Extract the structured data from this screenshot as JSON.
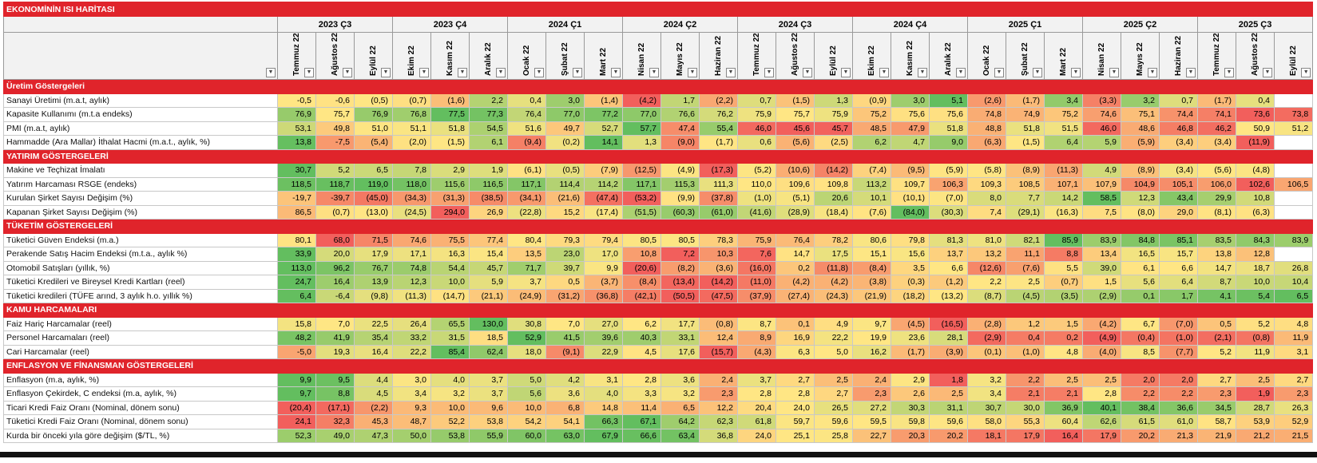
{
  "title": "EKONOMİNİN ISI HARİTASI",
  "quarters": [
    {
      "label": "2023 Ç3",
      "months": [
        "Temmuz 22",
        "Ağustos 22",
        "Eylül 22"
      ]
    },
    {
      "label": "2023 Ç4",
      "months": [
        "Ekim 22",
        "Kasım 22",
        "Aralık 22"
      ]
    },
    {
      "label": "2024 Ç1",
      "months": [
        "Ocak 22",
        "Şubat 22",
        "Mart 22"
      ]
    },
    {
      "label": "2024 Ç2",
      "months": [
        "Nisan 22",
        "Mayıs 22",
        "Haziran 22"
      ]
    },
    {
      "label": "2024 Ç3",
      "months": [
        "Temmuz 22",
        "Ağustos 22",
        "Eylül 22"
      ]
    },
    {
      "label": "2024 Ç4",
      "months": [
        "Ekim 22",
        "Kasım 22",
        "Aralık 22"
      ]
    },
    {
      "label": "2025 Ç1",
      "months": [
        "Ocak 22",
        "Şubat 22",
        "Mart 22"
      ]
    },
    {
      "label": "2025 Ç2",
      "months": [
        "Nisan 22",
        "Mayıs 22",
        "Haziran 22"
      ]
    },
    {
      "label": "2025 Ç3",
      "months": [
        "Temmuz 22",
        "Ağustos 22",
        "Eylül 22"
      ]
    }
  ],
  "sections": [
    {
      "title": "Üretim Göstergeleri",
      "rows": [
        {
          "label": "Sanayi Üretimi (m.a.t, aylık)",
          "cells": [
            "-0,5",
            "-0,6",
            "(0,5)",
            "(0,7)",
            "(1,6)",
            "2,2",
            "0,4",
            "3,0",
            "(1,4)",
            "(4,2)",
            "1,7",
            "(2,2)",
            "0,7",
            "(1,5)",
            "1,3",
            "(0,9)",
            "3,0",
            "5,1",
            "(2,6)",
            "(1,7)",
            "3,4",
            "(3,3)",
            "3,2",
            "0,7",
            "(1,7)",
            "0,4",
            null
          ]
        },
        {
          "label": "Kapasite Kullanımı (m.t.a endeks)",
          "cells": [
            "76,9",
            "75,7",
            "76,9",
            "76,8",
            "77,5",
            "77,3",
            "76,4",
            "77,0",
            "77,2",
            "77,0",
            "76,6",
            "76,2",
            "75,9",
            "75,7",
            "75,9",
            "75,2",
            "75,6",
            "75,6",
            "74,8",
            "74,9",
            "75,2",
            "74,6",
            "75,1",
            "74,4",
            "74,1",
            "73,6",
            "73,8"
          ]
        },
        {
          "label": "PMI (m.a.t, aylık)",
          "cells": [
            "53,1",
            "49,8",
            "51,0",
            "51,1",
            "51,8",
            "54,5",
            "51,6",
            "49,7",
            "52,7",
            "57,7",
            "47,4",
            "55,4",
            "46,0",
            "45,6",
            "45,7",
            "48,5",
            "47,9",
            "51,8",
            "48,8",
            "51,8",
            "51,5",
            "46,0",
            "48,6",
            "46,8",
            "46,2",
            "50,9",
            "51,2"
          ]
        },
        {
          "label": "Hammadde (Ara Mallar) İthalat Hacmi (m.a.t., aylık, %)",
          "cells": [
            "13,8",
            "-7,5",
            "(5,4)",
            "(2,0)",
            "(1,5)",
            "6,1",
            "(9,4)",
            "(0,2)",
            "14,1",
            "1,3",
            "(9,0)",
            "(1,7)",
            "0,6",
            "(5,6)",
            "(2,5)",
            "6,2",
            "4,7",
            "9,0",
            "(6,3)",
            "(1,5)",
            "6,4",
            "5,9",
            "(5,9)",
            "(3,4)",
            "(3,4)",
            "(11,9)",
            null
          ]
        }
      ]
    },
    {
      "title": "YATIRIM GÖSTERGELERİ",
      "rows": [
        {
          "label": "Makine ve Teçhizat İmalatı",
          "cells": [
            "30,7",
            "5,2",
            "6,5",
            "7,8",
            "2,9",
            "1,9",
            "(6,1)",
            "(0,5)",
            "(7,9)",
            "(12,5)",
            "(4,9)",
            "(17,3)",
            "(5,2)",
            "(10,6)",
            "(14,2)",
            "(7,4)",
            "(9,5)",
            "(5,9)",
            "(5,8)",
            "(8,9)",
            "(11,3)",
            "4,9",
            "(8,9)",
            "(3,4)",
            "(5,6)",
            "(4,8)",
            null
          ]
        },
        {
          "label": "Yatırım Harcaması RSGE (endeks)",
          "cells": [
            "118,5",
            "118,7",
            "119,0",
            "118,0",
            "115,6",
            "116,5",
            "117,1",
            "114,4",
            "114,2",
            "117,1",
            "115,3",
            "111,3",
            "110,0",
            "109,6",
            "109,8",
            "113,2",
            "109,7",
            "106,3",
            "109,3",
            "108,5",
            "107,1",
            "107,9",
            "104,9",
            "105,1",
            "106,0",
            "102,6",
            "106,5"
          ]
        },
        {
          "label": "Kurulan Şirket Sayısı Değişim (%)",
          "cells": [
            "-19,7",
            "-39,7",
            "(45,0)",
            "(34,3)",
            "(31,3)",
            "(38,5)",
            "(34,1)",
            "(21,6)",
            "(47,4)",
            "(53,2)",
            "(9,9)",
            "(37,8)",
            "(1,0)",
            "(5,1)",
            "20,6",
            "10,1",
            "(10,1)",
            "(7,0)",
            "8,0",
            "7,7",
            "14,2",
            "58,5",
            "12,3",
            "43,4",
            "29,9",
            "10,8",
            null
          ]
        },
        {
          "label": "Kapanan Şirket Sayısı Değişim (%)",
          "cells": [
            "86,5",
            "(0,7)",
            "(13,0)",
            "(24,5)",
            "294,0",
            "26,9",
            "(22,8)",
            "15,2",
            "(17,4)",
            "(51,5)",
            "(60,3)",
            "(61,0)",
            "(41,6)",
            "(28,9)",
            "(18,4)",
            "(7,6)",
            "(84,0)",
            "(30,3)",
            "7,4",
            "(29,1)",
            "(16,3)",
            "7,5",
            "(8,0)",
            "29,0",
            "(8,1)",
            "(6,3)",
            null
          ]
        }
      ]
    },
    {
      "title": "TÜKETİM GÖSTERGELERİ",
      "rows": [
        {
          "label": "Tüketici Güven Endeksi (m.a.)",
          "cells": [
            "80,1",
            "68,0",
            "71,5",
            "74,6",
            "75,5",
            "77,4",
            "80,4",
            "79,3",
            "79,4",
            "80,5",
            "80,5",
            "78,3",
            "75,9",
            "76,4",
            "78,2",
            "80,6",
            "79,8",
            "81,3",
            "81,0",
            "82,1",
            "85,9",
            "83,9",
            "84,8",
            "85,1",
            "83,5",
            "84,3",
            "83,9"
          ]
        },
        {
          "label": "Perakende Satış Hacim Endeksi (m.t.a., aylık %)",
          "cells": [
            "33,9",
            "20,0",
            "17,9",
            "17,1",
            "16,3",
            "15,4",
            "13,5",
            "23,0",
            "17,0",
            "10,8",
            "7,2",
            "10,3",
            "7,6",
            "14,7",
            "17,5",
            "15,1",
            "15,6",
            "13,7",
            "13,2",
            "11,1",
            "8,8",
            "13,4",
            "16,5",
            "15,7",
            "13,8",
            "12,8",
            null
          ]
        },
        {
          "label": "Otomobil Satışları (yıllık, %)",
          "cells": [
            "113,0",
            "96,2",
            "76,7",
            "74,8",
            "54,4",
            "45,7",
            "71,7",
            "39,7",
            "9,9",
            "(20,6)",
            "(8,2)",
            "(3,6)",
            "(16,0)",
            "0,2",
            "(11,8)",
            "(8,4)",
            "3,5",
            "6,6",
            "(12,6)",
            "(7,6)",
            "5,5",
            "39,0",
            "6,1",
            "6,6",
            "14,7",
            "18,7",
            "26,8"
          ]
        },
        {
          "label": "Tüketici Kredileri ve Bireysel Kredi Kartları (reel)",
          "cells": [
            "24,7",
            "16,4",
            "13,9",
            "12,3",
            "10,0",
            "5,9",
            "3,7",
            "0,5",
            "(3,7)",
            "(8,4)",
            "(13,4)",
            "(14,2)",
            "(11,0)",
            "(4,2)",
            "(4,2)",
            "(3,8)",
            "(0,3)",
            "(1,2)",
            "2,2",
            "2,5",
            "(0,7)",
            "1,5",
            "5,6",
            "6,4",
            "8,7",
            "10,0",
            "10,4"
          ]
        },
        {
          "label": "Tüketici kredileri (TÜFE arınd, 3 aylık h.o. yıllık %)",
          "cells": [
            "6,4",
            "-6,4",
            "(9,8)",
            "(11,3)",
            "(14,7)",
            "(21,1)",
            "(24,9)",
            "(31,2)",
            "(36,8)",
            "(42,1)",
            "(50,5)",
            "(47,5)",
            "(37,9)",
            "(27,4)",
            "(24,3)",
            "(21,9)",
            "(18,2)",
            "(13,2)",
            "(8,7)",
            "(4,5)",
            "(3,5)",
            "(2,9)",
            "0,1",
            "1,7",
            "4,1",
            "5,4",
            "6,5"
          ]
        }
      ]
    },
    {
      "title": "KAMU HARCAMALARI",
      "rows": [
        {
          "label": "Faiz Hariç Harcamalar (reel)",
          "cells": [
            "15,8",
            "7,0",
            "22,5",
            "26,4",
            "65,5",
            "130,0",
            "30,8",
            "7,0",
            "27,0",
            "6,2",
            "17,7",
            "(0,8)",
            "8,7",
            "0,1",
            "4,9",
            "9,7",
            "(4,5)",
            "(16,5)",
            "(2,8)",
            "1,2",
            "1,5",
            "(4,2)",
            "6,7",
            "(7,0)",
            "0,5",
            "5,2",
            "4,8"
          ]
        },
        {
          "label": "Personel Harcamaları (reel)",
          "cells": [
            "48,2",
            "41,9",
            "35,4",
            "33,2",
            "31,5",
            "18,5",
            "52,9",
            "41,5",
            "39,6",
            "40,3",
            "33,1",
            "12,4",
            "8,9",
            "16,9",
            "22,2",
            "19,9",
            "23,6",
            "28,1",
            "(2,9)",
            "0,4",
            "0,2",
            "(4,9)",
            "(0,4)",
            "(1,0)",
            "(2,1)",
            "(0,8)",
            "11,9"
          ]
        },
        {
          "label": "Cari Harcamalar (reel)",
          "cells": [
            "-5,0",
            "19,3",
            "16,4",
            "22,2",
            "85,4",
            "62,4",
            "18,0",
            "(9,1)",
            "22,9",
            "4,5",
            "17,6",
            "(15,7)",
            "(4,3)",
            "6,3",
            "5,0",
            "16,2",
            "(1,7)",
            "(3,9)",
            "(0,1)",
            "(1,0)",
            "4,8",
            "(4,0)",
            "8,5",
            "(7,7)",
            "5,2",
            "11,9",
            "3,1"
          ]
        }
      ]
    },
    {
      "title": "ENFLASYON VE FİNANSMAN GÖSTERGELERİ",
      "rows": [
        {
          "label": "Enflasyon (m.a, aylık, %)",
          "cells": [
            "9,9",
            "9,5",
            "4,4",
            "3,0",
            "4,0",
            "3,7",
            "5,0",
            "4,2",
            "3,1",
            "2,8",
            "3,6",
            "2,4",
            "3,7",
            "2,7",
            "2,5",
            "2,4",
            "2,9",
            "1,8",
            "3,2",
            "2,2",
            "2,5",
            "2,5",
            "2,0",
            "2,0",
            "2,7",
            "2,5",
            "2,7"
          ]
        },
        {
          "label": "Enflasyon Çekirdek, C endeksi (m.a, aylık, %)",
          "cells": [
            "9,7",
            "8,8",
            "4,5",
            "3,4",
            "3,2",
            "3,7",
            "5,6",
            "3,6",
            "4,0",
            "3,3",
            "3,2",
            "2,3",
            "2,8",
            "2,8",
            "2,7",
            "2,3",
            "2,6",
            "2,5",
            "3,4",
            "2,1",
            "2,1",
            "2,8",
            "2,2",
            "2,2",
            "2,3",
            "1,9",
            "2,3"
          ]
        },
        {
          "label": "Ticari Kredi Faiz Oranı (Nominal, dönem sonu)",
          "cells": [
            "(20,4)",
            "(17,1)",
            "(2,2)",
            "9,3",
            "10,0",
            "9,6",
            "10,0",
            "6,8",
            "14,8",
            "11,4",
            "6,5",
            "12,2",
            "20,4",
            "24,0",
            "26,5",
            "27,2",
            "30,3",
            "31,1",
            "30,7",
            "30,0",
            "36,9",
            "40,1",
            "38,4",
            "36,6",
            "34,5",
            "28,7",
            "26,3"
          ]
        },
        {
          "label": "Tüketici Kredi Faiz Oranı (Nominal, dönem sonu)",
          "cells": [
            "24,1",
            "32,3",
            "45,3",
            "48,7",
            "52,2",
            "53,8",
            "54,2",
            "54,1",
            "66,3",
            "67,1",
            "64,2",
            "62,3",
            "61,8",
            "59,7",
            "59,6",
            "59,5",
            "59,8",
            "59,6",
            "58,0",
            "55,3",
            "60,4",
            "62,6",
            "61,5",
            "61,0",
            "58,7",
            "53,9",
            "52,9"
          ]
        },
        {
          "label": "Kurda bir önceki yıla göre değişim ($/TL, %)",
          "cells": [
            "52,3",
            "49,0",
            "47,3",
            "50,0",
            "53,8",
            "55,9",
            "60,0",
            "63,0",
            "67,9",
            "66,6",
            "63,4",
            "36,8",
            "24,0",
            "25,1",
            "25,8",
            "22,7",
            "20,3",
            "20,2",
            "18,1",
            "17,9",
            "16,4",
            "17,9",
            "20,2",
            "21,3",
            "21,9",
            "21,2",
            "21,5"
          ]
        }
      ]
    }
  ]
}
